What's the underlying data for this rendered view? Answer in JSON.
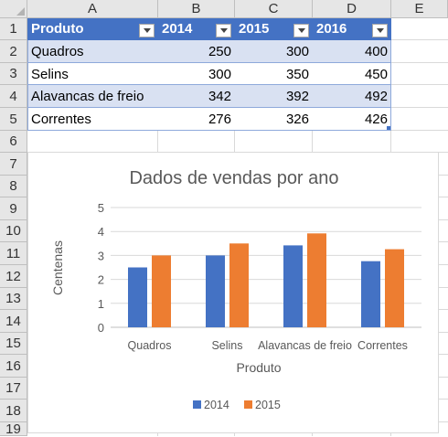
{
  "sheet": {
    "columns": [
      "A",
      "B",
      "C",
      "D",
      "E"
    ],
    "rows": [
      "1",
      "2",
      "3",
      "4",
      "5",
      "6",
      "7",
      "8",
      "9",
      "10",
      "11",
      "12",
      "13",
      "14",
      "15",
      "16",
      "17",
      "18",
      "19"
    ]
  },
  "table": {
    "headers": [
      "Produto",
      "2014",
      "2015",
      "2016"
    ],
    "rows": [
      [
        "Quadros",
        "250",
        "300",
        "400"
      ],
      [
        "Selins",
        "300",
        "350",
        "450"
      ],
      [
        "Alavancas de freio",
        "342",
        "392",
        "492"
      ],
      [
        "Correntes",
        "276",
        "326",
        "426"
      ]
    ]
  },
  "colors": {
    "header_fill": "#4472c4",
    "band_fill": "#d9e1f2",
    "series_2014": "#4472c4",
    "series_2015": "#ed7d31"
  },
  "chart_data": {
    "type": "bar",
    "title": "Dados de vendas por ano",
    "xlabel": "Produto",
    "ylabel": "Centenas",
    "categories": [
      "Quadros",
      "Selins",
      "Alavancas de freio",
      "Correntes"
    ],
    "series": [
      {
        "name": "2014",
        "values": [
          2.5,
          3.0,
          3.42,
          2.76
        ]
      },
      {
        "name": "2015",
        "values": [
          3.0,
          3.5,
          3.92,
          3.26
        ]
      }
    ],
    "ylim": [
      0,
      5
    ],
    "yticks": [
      "0",
      "1",
      "2",
      "3",
      "4",
      "5"
    ],
    "grid": true,
    "legend": "bottom"
  }
}
